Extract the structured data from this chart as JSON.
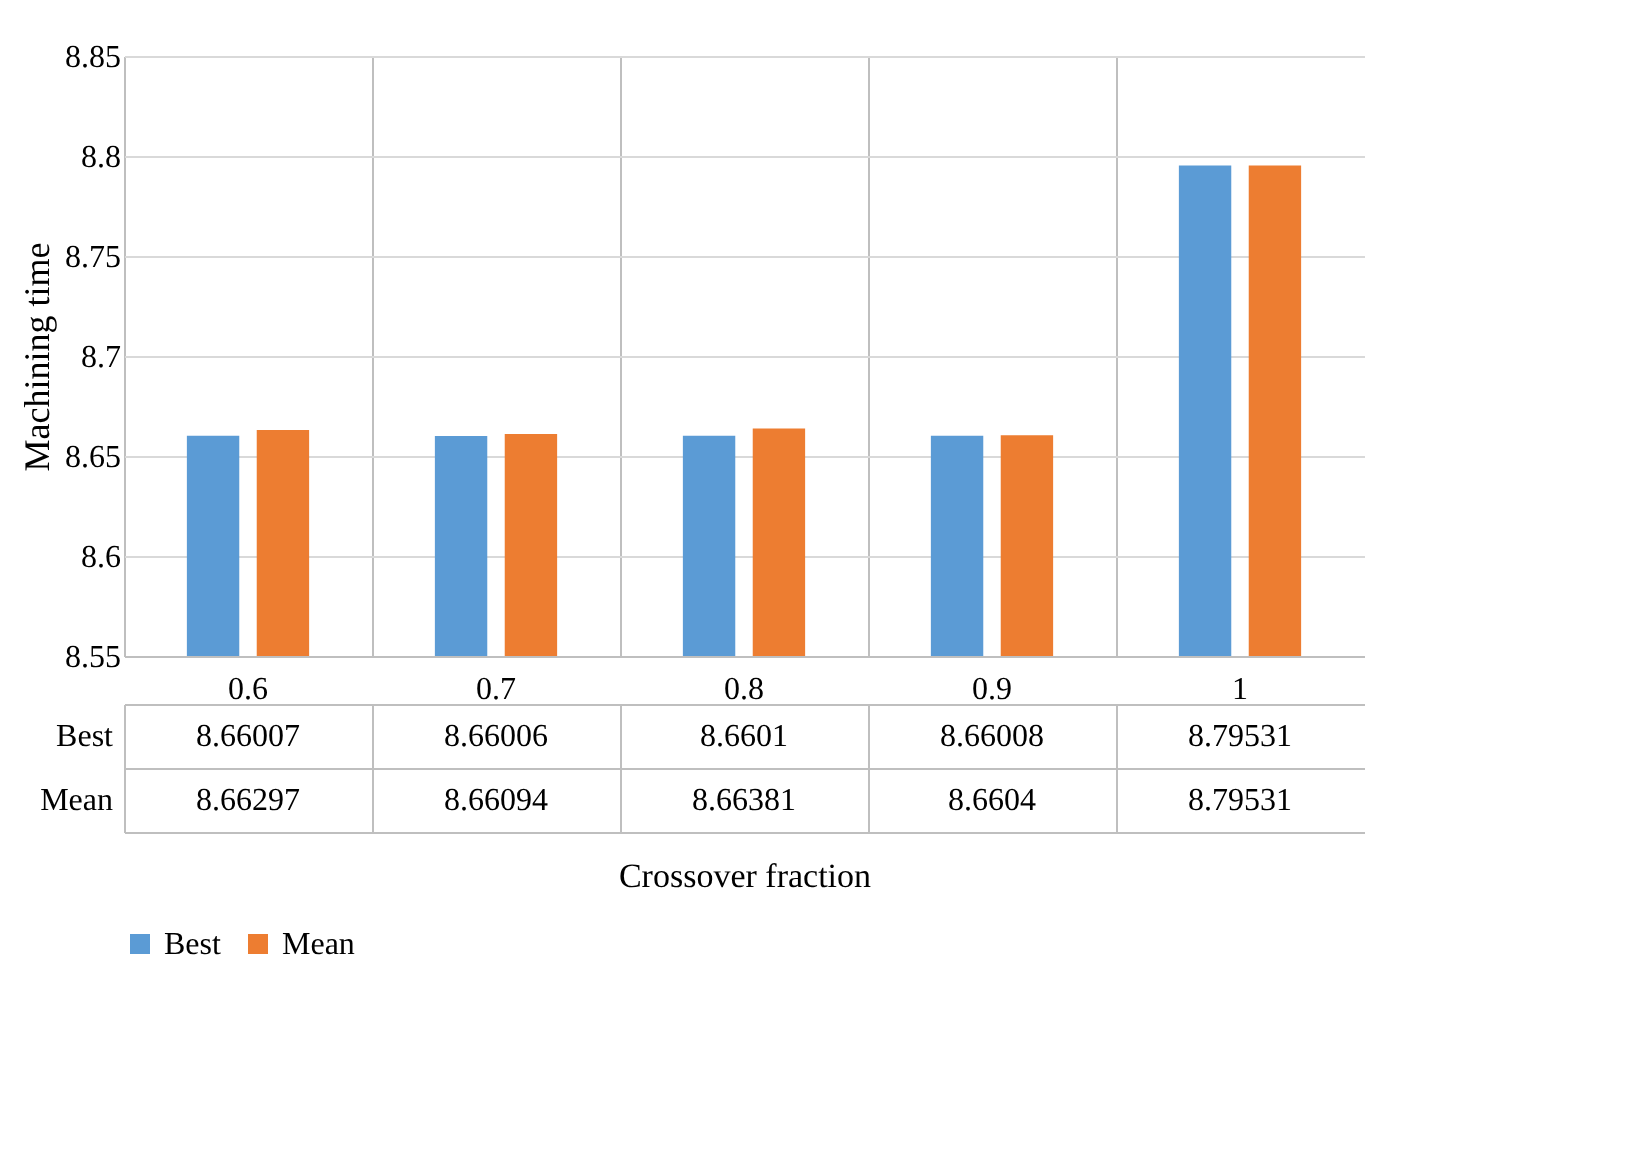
{
  "chart_data": {
    "type": "bar",
    "xlabel": "Crossover fraction",
    "ylabel": "Machining time",
    "categories": [
      "0.6",
      "0.7",
      "0.8",
      "0.9",
      "1"
    ],
    "series": [
      {
        "name": "Best",
        "color": "#5b9bd5",
        "values": [
          8.66007,
          8.66006,
          8.6601,
          8.66008,
          8.79531
        ]
      },
      {
        "name": "Mean",
        "color": "#ed7d31",
        "values": [
          8.66297,
          8.66094,
          8.66381,
          8.6604,
          8.79531
        ]
      }
    ],
    "ylim": [
      8.55,
      8.85
    ],
    "yticks": [
      8.55,
      8.6,
      8.65,
      8.7,
      8.75,
      8.8,
      8.85
    ],
    "grid": "y",
    "legend": "bottom",
    "data_labels": true
  }
}
